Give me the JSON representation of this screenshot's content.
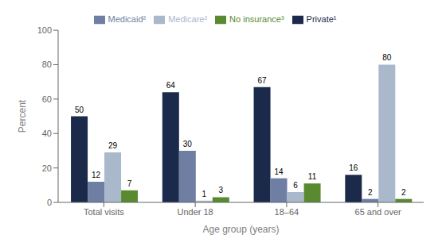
{
  "chart_data": {
    "type": "bar",
    "categories": [
      "Total visits",
      "Under 18",
      "18–64",
      "65 and over"
    ],
    "series": [
      {
        "name": "Private¹",
        "color": "#1b2a4a",
        "values": [
          50,
          64,
          67,
          16
        ]
      },
      {
        "name": "Medicaid²",
        "color": "#6e7fa3",
        "values": [
          12,
          30,
          14,
          2
        ]
      },
      {
        "name": "Medicare²",
        "color": "#aab8cc",
        "values": [
          29,
          1,
          6,
          80
        ]
      },
      {
        "name": "No insurance³",
        "color": "#5a8a30",
        "values": [
          7,
          3,
          11,
          2
        ]
      }
    ],
    "xlabel": "Age group (years)",
    "ylabel": "Percent",
    "ylim": [
      0,
      100
    ],
    "yticks": [
      0,
      20,
      40,
      60,
      80,
      100
    ],
    "grid": false,
    "legend": "top",
    "data_labels": true
  }
}
